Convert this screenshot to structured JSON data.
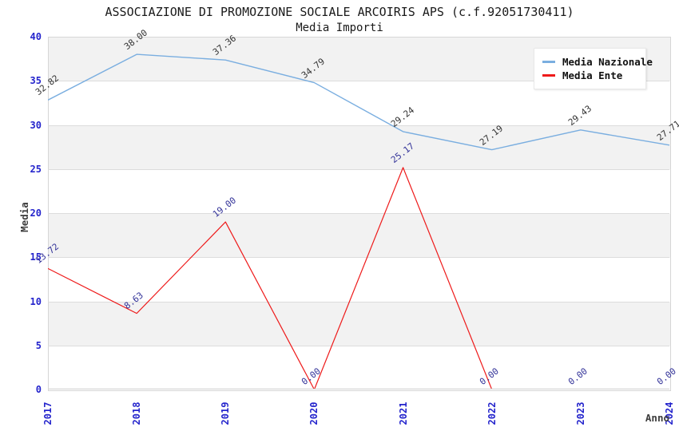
{
  "chart_data": {
    "type": "line",
    "title": "ASSOCIAZIONE DI PROMOZIONE SOCIALE ARCOIRIS APS (c.f.92051730411)",
    "subtitle": "Media Importi",
    "xlabel": "Anno",
    "ylabel": "Media",
    "categories": [
      "2017",
      "2018",
      "2019",
      "2020",
      "2021",
      "2022",
      "2023",
      "2024"
    ],
    "series": [
      {
        "name": "Media Nazionale",
        "color": "#7AAEE0",
        "label_color": "#333333",
        "values": [
          32.82,
          38.0,
          37.36,
          34.79,
          29.24,
          27.19,
          29.43,
          27.71
        ],
        "labels": [
          "32.82",
          "38.00",
          "37.36",
          "34.79",
          "29.24",
          "27.19",
          "29.43",
          "27.71"
        ]
      },
      {
        "name": "Media Ente",
        "color": "#EE1A1A",
        "label_color": "#333399",
        "values": [
          13.72,
          8.63,
          19.0,
          0.0,
          25.17,
          0.0,
          0.0,
          0.0
        ],
        "labels": [
          "13.72",
          "8.63",
          "19.00",
          "0.00",
          "25.17",
          "0.00",
          "0.00",
          "0.00"
        ]
      }
    ],
    "ylim": [
      0,
      40
    ],
    "yticks": [
      0,
      5,
      10,
      15,
      20,
      25,
      30,
      35,
      40
    ],
    "grid": "horizontal-bands",
    "band_color": "#F2F2F2",
    "legend_position": "top-right"
  },
  "colors": {
    "tick_label": "#2424CC",
    "grid_line": "#DCDCDC",
    "plot_border": "#D6D6D6"
  }
}
